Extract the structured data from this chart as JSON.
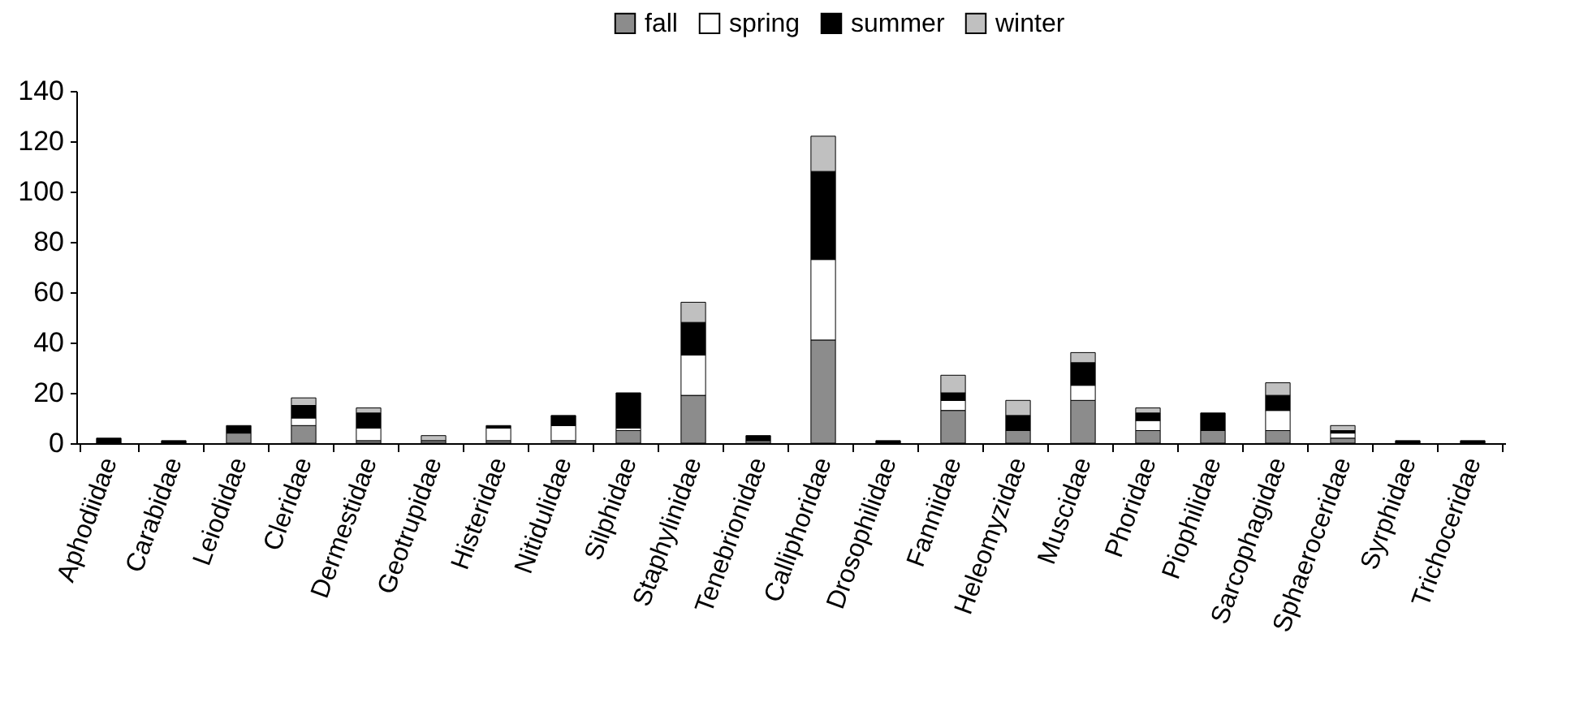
{
  "chart_data": {
    "type": "bar",
    "stacked": true,
    "legend": "top",
    "categories": [
      "Aphodiidae",
      "Carabidae",
      "Leiodidae",
      "Cleridae",
      "Dermestidae",
      "Geotrupidae",
      "Histeridae",
      "Nitidulidae",
      "Silphidae",
      "Staphylinidae",
      "Tenebrionidae",
      "Calliphoridae",
      "Drosophilidae",
      "Fanniidae",
      "Heleomyzidae",
      "Muscidae",
      "Phoridae",
      "Piophilidae",
      "Sarcophagidae",
      "Sphaeroceridae",
      "Syrphidae",
      "Trichoceridae"
    ],
    "ylim": [
      0,
      140
    ],
    "yticks": [
      0,
      20,
      40,
      60,
      80,
      100,
      120,
      140
    ],
    "series": [
      {
        "name": "fall",
        "color": "#8c8c8c",
        "values": [
          0,
          0,
          4,
          7,
          1,
          1,
          1,
          1,
          5,
          19,
          1,
          41,
          0,
          13,
          5,
          17,
          5,
          5,
          5,
          2,
          0,
          0
        ]
      },
      {
        "name": "spring",
        "color": "#ffffff",
        "values": [
          0,
          0,
          0,
          3,
          5,
          0,
          5,
          6,
          1,
          16,
          0,
          32,
          0,
          4,
          0,
          6,
          4,
          0,
          8,
          2,
          0,
          0
        ]
      },
      {
        "name": "summer",
        "color": "#000000",
        "values": [
          2,
          1,
          3,
          5,
          6,
          0,
          1,
          4,
          14,
          13,
          2,
          35,
          1,
          3,
          6,
          9,
          3,
          7,
          6,
          1,
          1,
          1
        ]
      },
      {
        "name": "winter",
        "color": "#c0c0c0",
        "values": [
          0,
          0,
          0,
          3,
          2,
          2,
          0,
          0,
          0,
          8,
          0,
          14,
          0,
          7,
          6,
          4,
          2,
          0,
          5,
          2,
          0,
          0
        ]
      }
    ]
  }
}
